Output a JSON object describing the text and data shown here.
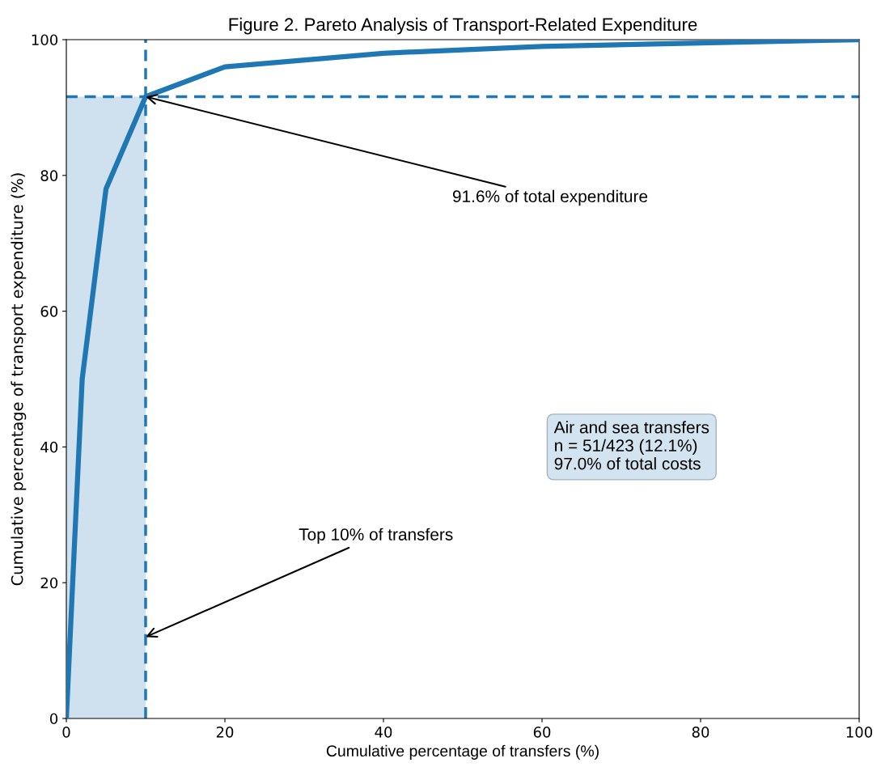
{
  "chart_data": {
    "type": "line",
    "title": "Figure 2. Pareto Analysis of Transport-Related Expenditure",
    "xlabel": "Cumulative percentage of transfers (%)",
    "ylabel": "Cumulative percentage of transport expenditure (%)",
    "series": [
      {
        "type": "area",
        "color": "#cfe0ee",
        "x": [
          0,
          10
        ],
        "values": [
          91.6,
          91.6
        ]
      },
      {
        "color": "#1f77b4",
        "x": [
          0,
          2,
          5,
          10,
          20,
          40,
          60,
          80,
          100
        ],
        "values": [
          0,
          50,
          78,
          91.6,
          96,
          98,
          99,
          99.5,
          100
        ]
      }
    ],
    "ref_lines": [
      {
        "axis": "x",
        "value": 10,
        "color": "#1f77b4",
        "line_style": "dashed"
      },
      {
        "axis": "y",
        "value": 91.6,
        "color": "#1f77b4",
        "line_style": "dashed"
      }
    ],
    "annotations": [
      {
        "text": "91.6% of total expenditure",
        "x": 10,
        "y": 91.6
      },
      {
        "text": "Top 10% of transfers",
        "x": 10,
        "y": 12
      },
      "Air and sea transfers\nn = 51/423 (12.1%)\n97.0% of total costs"
    ],
    "xlim": [
      0,
      100
    ],
    "ylim": [
      0,
      100
    ],
    "xticks": [
      0,
      20,
      40,
      60,
      80,
      100
    ],
    "yticks": [
      0,
      20,
      40,
      60,
      80,
      100
    ],
    "grid": false,
    "legend": false,
    "marker": "none",
    "line_style": "solid"
  }
}
